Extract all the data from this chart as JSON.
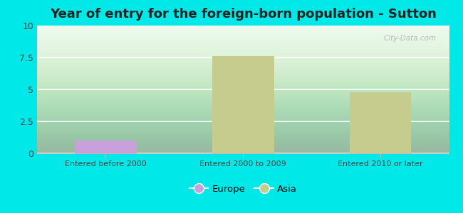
{
  "title": "Year of entry for the foreign-born population - Sutton",
  "categories": [
    "Entered before 2000",
    "Entered 2000 to 2009",
    "Entered 2010 or later"
  ],
  "europe_values": [
    1.0,
    0,
    0
  ],
  "asia_values": [
    0,
    7.6,
    4.8
  ],
  "europe_color": "#c9a0dc",
  "asia_color": "#c5cc8e",
  "ylim": [
    0,
    10
  ],
  "yticks": [
    0,
    2.5,
    5,
    7.5,
    10
  ],
  "ytick_labels": [
    "0",
    "2.5",
    "5",
    "7.5",
    "10"
  ],
  "outer_bg": "#00e8e8",
  "plot_bg": "#e8f8e8",
  "title_fontsize": 13,
  "bar_width": 0.45,
  "legend_labels": [
    "Europe",
    "Asia"
  ],
  "watermark": "City-Data.com"
}
